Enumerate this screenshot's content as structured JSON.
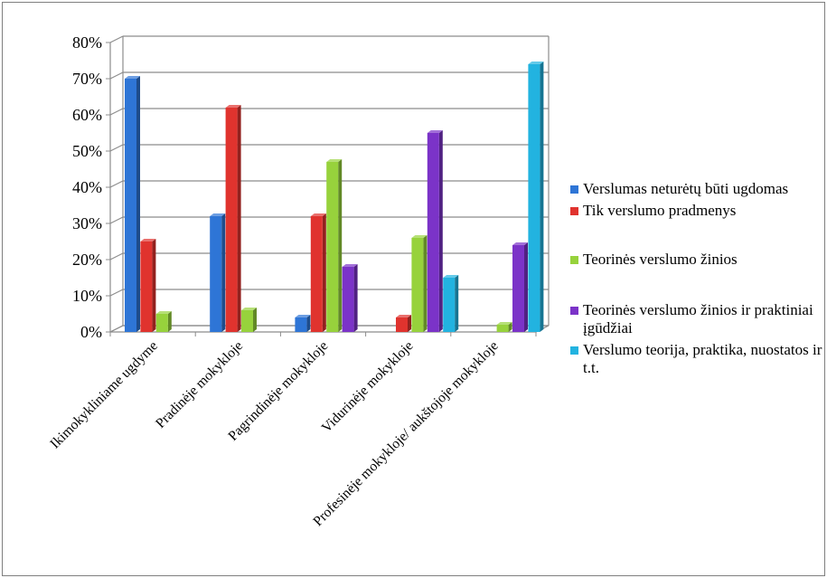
{
  "chart_data": {
    "type": "bar",
    "title": "",
    "xlabel": "",
    "ylabel": "",
    "ylim": [
      0,
      0.8
    ],
    "y_ticks": [
      "0%",
      "10%",
      "20%",
      "30%",
      "40%",
      "50%",
      "60%",
      "70%",
      "80%"
    ],
    "y_tick_values": [
      0,
      0.1,
      0.2,
      0.3,
      0.4,
      0.5,
      0.6,
      0.7,
      0.8
    ],
    "grid": true,
    "style": "3d-clustered-columns",
    "legend_position": "right",
    "categories": [
      "Ikimokykliniame ugdyme",
      "Pradinėje mokykloje",
      "Pagrindinėje mokykloje",
      "Vidurinėje mokykloje",
      "Profesinėje mokykloje/ aukštojoje mokykloje"
    ],
    "series": [
      {
        "name": "Verslumas neturėtų būti ugdomas",
        "color": "#2e75d6",
        "values": [
          0.7,
          0.32,
          0.04,
          null,
          null
        ]
      },
      {
        "name": "Tik verslumo pradmenys",
        "color": "#e0332e",
        "values": [
          0.25,
          0.62,
          0.32,
          0.04,
          null
        ]
      },
      {
        "name": "Teorinės verslumo žinios",
        "color": "#97d23c",
        "values": [
          0.05,
          0.06,
          0.47,
          0.26,
          0.02
        ]
      },
      {
        "name": "Teorinės verslumo žinios ir praktiniai įgūdžiai",
        "color": "#7b33c8",
        "values": [
          null,
          null,
          0.18,
          0.55,
          0.24
        ]
      },
      {
        "name": "Verslumo teorija, praktika, nuostatos ir t.t.",
        "color": "#22b3e0",
        "values": [
          null,
          null,
          null,
          0.15,
          0.74
        ]
      }
    ]
  }
}
